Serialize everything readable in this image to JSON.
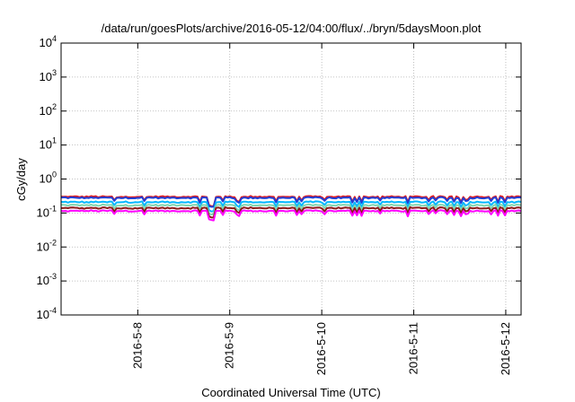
{
  "chart_data": {
    "type": "line",
    "title": "/data/run/goesPlots/archive/2016-05-12/04:00/flux/../bryn/5daysMoon.plot",
    "xlabel": "Coordinated Universal Time (UTC)",
    "ylabel": "cGy/day",
    "yscale": "log",
    "ylim": [
      0.0001,
      10000
    ],
    "y_ticks": [
      {
        "base": "10",
        "exp": "-4"
      },
      {
        "base": "10",
        "exp": "-3"
      },
      {
        "base": "10",
        "exp": "-2"
      },
      {
        "base": "10",
        "exp": "-1"
      },
      {
        "base": "10",
        "exp": "0"
      },
      {
        "base": "10",
        "exp": "1"
      },
      {
        "base": "10",
        "exp": "2"
      },
      {
        "base": "10",
        "exp": "3"
      },
      {
        "base": "10",
        "exp": "4"
      }
    ],
    "x_ticks": [
      "2016-5-8",
      "2016-5-9",
      "2016-5-10",
      "2016-5-11",
      "2016-5-12"
    ],
    "xlim": [
      "2016-05-07 04:00",
      "2016-05-12 04:00"
    ],
    "grid": true,
    "series": [
      {
        "color": "#e41a1c",
        "base": 0.3
      },
      {
        "color": "#1f3fd6",
        "base": 0.28
      },
      {
        "color": "#00b7ff",
        "base": 0.21
      },
      {
        "color": "#7fd6b0",
        "base": 0.17
      },
      {
        "color": "#8b1a1a",
        "base": 0.14
      },
      {
        "color": "#ff00ff",
        "base": 0.115
      }
    ]
  }
}
